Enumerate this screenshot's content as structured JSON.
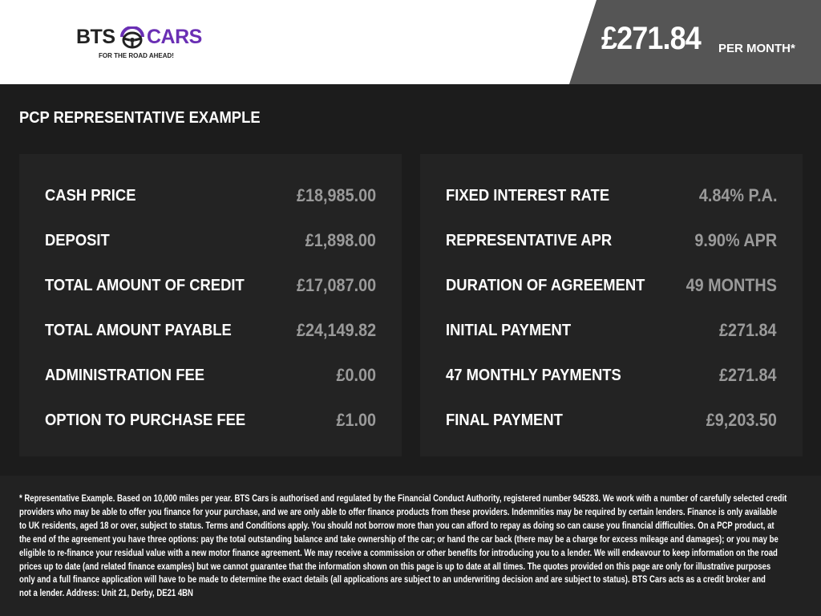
{
  "header": {
    "logo": {
      "brand_left": "BTS",
      "brand_right": "CARS",
      "tagline": "FOR THE ROAD AHEAD!",
      "accent": "#6a2fb4"
    },
    "monthly_price": "£271.84",
    "per_month_label": "PER MONTH*"
  },
  "section_title": "PCP REPRESENTATIVE EXAMPLE",
  "left_table": [
    {
      "label": "CASH PRICE",
      "value": "£18,985.00"
    },
    {
      "label": "DEPOSIT",
      "value": "£1,898.00"
    },
    {
      "label": "TOTAL AMOUNT OF CREDIT",
      "value": "£17,087.00"
    },
    {
      "label": "TOTAL AMOUNT PAYABLE",
      "value": "£24,149.82"
    },
    {
      "label": "ADMINISTRATION FEE",
      "value": "£0.00"
    },
    {
      "label": "OPTION TO PURCHASE FEE",
      "value": "£1.00"
    }
  ],
  "right_table": [
    {
      "label": "FIXED INTEREST RATE",
      "value": "4.84% P.A."
    },
    {
      "label": "REPRESENTATIVE APR",
      "value": "9.90% APR"
    },
    {
      "label": "DURATION OF AGREEMENT",
      "value": "49 MONTHS"
    },
    {
      "label": "INITIAL PAYMENT",
      "value": "£271.84"
    },
    {
      "label": "47 MONTHLY PAYMENTS",
      "value": "£271.84"
    },
    {
      "label": "FINAL PAYMENT",
      "value": "£9,203.50"
    }
  ],
  "disclaimer_lines": [
    "* Representative Example. Based on 10,000 miles per year. BTS Cars is authorised and regulated by the Financial Conduct Authority, registered number 945283. We work with a number of carefully selected credit",
    "providers who may be able to offer you finance for your purchase, and we are only able to offer finance products from these providers. Indemnities may be required by certain lenders. Finance is only available",
    "to UK residents, aged 18 or over, subject to status. Terms and Conditions apply. You should not borrow more than you can afford to repay as doing so can cause you financial difficulties. On a PCP product, at",
    "the end of the agreement you have three options: pay the total outstanding balance and take ownership of the car; or hand the car back (there may be a charge for excess mileage and damages); or you may be",
    "eligible to re-finance your residual value with a new motor finance agreement. We may receive a commission or other benefits for introducing you to a lender. We will endeavour to keep information on the road",
    "prices up to date (and related finance examples) but we cannot guarantee that the information shown on this page is up to date at all times. The quotes provided on this page are only for illustrative purposes",
    "only and a full finance application will have to be made to determine the exact details (all applications are subject to an underwriting decision and are subject to status). BTS Cars acts as a credit broker and",
    "not a lender. Address: Unit 21, Derby, DE21 4BN"
  ]
}
